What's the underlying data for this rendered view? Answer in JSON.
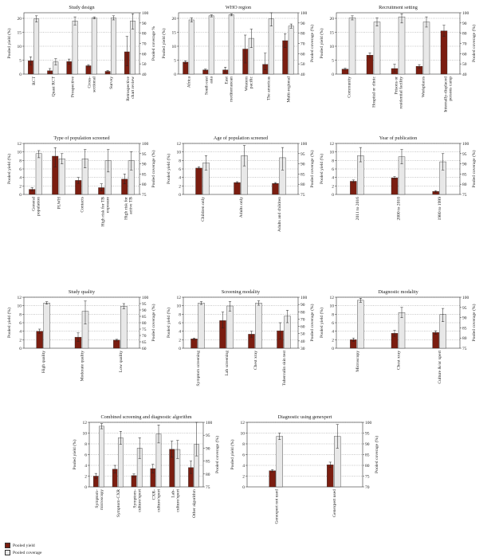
{
  "colors": {
    "yield": "#7b1d10",
    "coverage": "#e8e8e8",
    "edge": "#333333"
  },
  "legend": {
    "yield_label": "Pooled yield",
    "coverage_label": "Pooled coverage"
  },
  "chart_data": [
    {
      "type": "bar",
      "title": "Study design",
      "ylabel": "Pooled yield (%)",
      "y2label": "Pooled coverage %",
      "ylim": [
        0,
        22
      ],
      "yticks": [
        0,
        5,
        10,
        15,
        20
      ],
      "y2lim": [
        40,
        100
      ],
      "y2ticks": [
        40,
        50,
        60,
        70,
        80,
        90,
        100
      ],
      "categories": [
        "RCT",
        "Quasi RCT",
        "Prospective",
        "Cross-\nsectional",
        "Survey",
        "Retrospective\nchart review"
      ],
      "series": [
        {
          "name": "Pooled yield",
          "axis": "left",
          "values": [
            4.8,
            1.2,
            4.5,
            3.0,
            1.0,
            8.0
          ],
          "err": [
            [
              3.3,
              6.2
            ],
            [
              0.5,
              2.0
            ],
            [
              3.6,
              5.4
            ],
            [
              2.6,
              3.4
            ],
            [
              0.8,
              1.3
            ],
            [
              3.0,
              13.5
            ]
          ]
        },
        {
          "name": "Pooled coverage",
          "axis": "right",
          "values": [
            94,
            52,
            92,
            95,
            95,
            92
          ],
          "err": [
            [
              91,
              97
            ],
            [
              49,
              55
            ],
            [
              88,
              96
            ],
            [
              94,
              96
            ],
            [
              93,
              97
            ],
            [
              84,
              99
            ]
          ]
        }
      ]
    },
    {
      "type": "bar",
      "title": "WHO region",
      "ylabel": "Pooled yield (%)",
      "y2label": "Pooled coverage (%)",
      "ylim": [
        0,
        22
      ],
      "yticks": [
        0,
        5,
        10,
        15,
        20
      ],
      "y2lim": [
        40,
        100
      ],
      "y2ticks": [
        40,
        50,
        60,
        70,
        80,
        90,
        100
      ],
      "categories": [
        "Africa",
        "South east\nasia",
        "East\nmediterranean",
        "Western\npacific",
        "The americas",
        "Multi-regional"
      ],
      "series": [
        {
          "name": "Pooled yield",
          "axis": "left",
          "values": [
            4.3,
            1.5,
            1.5,
            9.0,
            3.5,
            12.0
          ],
          "err": [
            [
              3.8,
              4.8
            ],
            [
              1.2,
              1.8
            ],
            [
              0.8,
              2.5
            ],
            [
              4.0,
              14.0
            ],
            [
              1.5,
              7.5
            ],
            [
              9.5,
              14.5
            ]
          ]
        },
        {
          "name": "Pooled coverage",
          "axis": "right",
          "values": [
            93,
            97,
            98,
            75,
            94,
            87
          ],
          "err": [
            [
              91,
              95
            ],
            [
              96,
              98
            ],
            [
              97,
              99
            ],
            [
              66,
              84
            ],
            [
              87,
              100
            ],
            [
              85,
              89
            ]
          ]
        }
      ]
    },
    {
      "type": "bar",
      "title": "Recruitment setting",
      "ylabel": "Pooled yield (%)",
      "y2label": "Pooled coverage (%)",
      "ylim": [
        0,
        22
      ],
      "yticks": [
        0,
        5,
        10,
        15,
        20
      ],
      "y2lim": [
        40,
        100
      ],
      "y2ticks": [
        40,
        50,
        60,
        70,
        80,
        90,
        100
      ],
      "categories": [
        "Community",
        "Hospital or clinic",
        "Prisons or\nresidential facility",
        "Workplaces",
        "Internally-displaced\npersons camp"
      ],
      "series": [
        {
          "name": "Pooled yield",
          "axis": "left",
          "values": [
            1.8,
            6.8,
            2.0,
            2.8,
            15.5
          ],
          "err": [
            [
              1.5,
              2.1
            ],
            [
              6.0,
              7.6
            ],
            [
              0.8,
              3.5
            ],
            [
              2.2,
              3.4
            ],
            [
              13.5,
              17.5
            ]
          ]
        },
        {
          "name": "Pooled coverage",
          "axis": "right",
          "values": [
            95,
            91,
            96,
            91,
            null
          ],
          "err": [
            [
              93,
              97
            ],
            [
              87,
              95
            ],
            [
              90,
              99
            ],
            [
              86,
              96
            ],
            null
          ]
        }
      ]
    },
    {
      "type": "bar",
      "title": "Type of population screened",
      "ylabel": "Pooled yield (%)",
      "y2label": "Pooled coverage (%)",
      "ylim": [
        0,
        12
      ],
      "yticks": [
        0,
        2,
        4,
        6,
        8,
        10,
        12
      ],
      "y2lim": [
        75,
        100
      ],
      "y2ticks": [
        75,
        80,
        85,
        90,
        95,
        100
      ],
      "categories": [
        "General\npopulation",
        "PLWH",
        "Contacts",
        "High risk for TB\nexposure",
        "High risk for\nactive TB"
      ],
      "series": [
        {
          "name": "Pooled yield",
          "axis": "left",
          "values": [
            1.2,
            9.0,
            3.3,
            1.6,
            3.6
          ],
          "err": [
            [
              0.8,
              1.6
            ],
            [
              6.5,
              11.0
            ],
            [
              2.6,
              4.0
            ],
            [
              0.8,
              2.5
            ],
            [
              2.5,
              4.8
            ]
          ]
        },
        {
          "name": "Pooled coverage",
          "axis": "right",
          "values": [
            95,
            92.5,
            92.5,
            91.5,
            91.5
          ],
          "err": [
            [
              93,
              96.5
            ],
            [
              90,
              95
            ],
            [
              88,
              97
            ],
            [
              86,
              97
            ],
            [
              87,
              96
            ]
          ]
        }
      ]
    },
    {
      "type": "bar",
      "title": "Age of population screened",
      "ylabel": "Pooled yield (%)",
      "y2label": "Pooled coverage (%)",
      "ylim": [
        0,
        12
      ],
      "yticks": [
        0,
        2,
        4,
        6,
        8,
        10,
        12
      ],
      "y2lim": [
        75,
        100
      ],
      "y2ticks": [
        75,
        80,
        85,
        90,
        95,
        100
      ],
      "categories": [
        "Children only",
        "Adults only",
        "Adults and children"
      ],
      "series": [
        {
          "name": "Pooled yield",
          "axis": "left",
          "values": [
            6.2,
            2.8,
            2.6
          ],
          "err": [
            [
              6.0,
              6.5
            ],
            [
              2.6,
              3.0
            ],
            [
              2.5,
              2.8
            ]
          ]
        },
        {
          "name": "Pooled coverage",
          "axis": "right",
          "values": [
            90.5,
            94,
            93
          ],
          "err": [
            [
              87,
              94
            ],
            [
              89,
              99
            ],
            [
              87,
              98
            ]
          ]
        }
      ]
    },
    {
      "type": "bar",
      "title": "Year of publication",
      "ylabel": "Pooled yield (%)",
      "y2label": "Pooled coverage (%)",
      "ylim": [
        0,
        12
      ],
      "yticks": [
        0,
        2,
        4,
        6,
        8,
        10,
        12
      ],
      "y2lim": [
        75,
        100
      ],
      "y2ticks": [
        75,
        80,
        85,
        90,
        95,
        100
      ],
      "categories": [
        "2011 to 2016",
        "2000 to 2010",
        "1980 to 1999"
      ],
      "series": [
        {
          "name": "Pooled yield",
          "axis": "left",
          "values": [
            3.1,
            3.9,
            0.7
          ],
          "err": [
            [
              2.8,
              3.4
            ],
            [
              3.6,
              4.2
            ],
            [
              0.5,
              0.9
            ]
          ]
        },
        {
          "name": "Pooled coverage",
          "axis": "right",
          "values": [
            94,
            93.5,
            91
          ],
          "err": [
            [
              91,
              98
            ],
            [
              90,
              97
            ],
            [
              87,
              95
            ]
          ]
        }
      ]
    },
    {
      "type": "bar",
      "title": "Study quality",
      "ylabel": "Pooled yield (%)",
      "y2label": "Pooled coverage (%)",
      "ylim": [
        0,
        12
      ],
      "yticks": [
        0,
        2,
        4,
        6,
        8,
        10,
        12
      ],
      "y2lim": [
        60,
        100
      ],
      "y2ticks": [
        60,
        65,
        70,
        75,
        80,
        85,
        90,
        95,
        100
      ],
      "categories": [
        "High quality",
        "Moderate quality",
        "Low quality"
      ],
      "series": [
        {
          "name": "Pooled yield",
          "axis": "left",
          "values": [
            4.0,
            2.6,
            1.9
          ],
          "err": [
            [
              3.5,
              4.5
            ],
            [
              1.6,
              3.6
            ],
            [
              1.7,
              2.1
            ]
          ]
        },
        {
          "name": "Pooled coverage",
          "axis": "right",
          "values": [
            95.5,
            89,
            93
          ],
          "err": [
            [
              94.5,
              96.5
            ],
            [
              79,
              97
            ],
            [
              91,
              95
            ]
          ]
        }
      ]
    },
    {
      "type": "bar",
      "title": "Screening modality",
      "ylabel": "Pooled yield (%)",
      "y2label": "Pooled coverage (%)",
      "ylim": [
        0,
        12
      ],
      "yticks": [
        0,
        2,
        4,
        6,
        8,
        10,
        12
      ],
      "y2lim": [
        30,
        100
      ],
      "y2ticks": [
        30,
        40,
        50,
        60,
        70,
        80,
        90,
        100
      ],
      "categories": [
        "Symptom screening",
        "Lab screening",
        "Chest xray",
        "Tuberculin skin test"
      ],
      "series": [
        {
          "name": "Pooled yield",
          "axis": "left",
          "values": [
            2.2,
            6.5,
            3.3,
            4.1
          ],
          "err": [
            [
              2.0,
              2.4
            ],
            [
              4.8,
              8.5
            ],
            [
              2.6,
              4.0
            ],
            [
              2.2,
              6.0
            ]
          ]
        },
        {
          "name": "Pooled coverage",
          "axis": "right",
          "values": [
            92,
            88,
            92,
            74
          ],
          "err": [
            [
              90,
              94
            ],
            [
              81,
              94
            ],
            [
              89,
              95
            ],
            [
              65,
              82
            ]
          ]
        }
      ]
    },
    {
      "type": "bar",
      "title": "Diagnostic modality",
      "ylabel": "Pooled yield (%)",
      "y2label": "Pooled coverage (%)",
      "ylim": [
        0,
        12
      ],
      "yticks": [
        0,
        2,
        4,
        6,
        8,
        10,
        12
      ],
      "y2lim": [
        75,
        100
      ],
      "y2ticks": [
        75,
        80,
        85,
        90,
        95,
        100
      ],
      "categories": [
        "Microscopy",
        "Chest xray",
        "Culture &/or xpert"
      ],
      "series": [
        {
          "name": "Pooled yield",
          "axis": "left",
          "values": [
            2.0,
            3.5,
            3.7
          ],
          "err": [
            [
              1.6,
              2.4
            ],
            [
              2.8,
              4.2
            ],
            [
              3.3,
              4.1
            ]
          ]
        },
        {
          "name": "Pooled coverage",
          "axis": "right",
          "values": [
            98.5,
            92.5,
            91.5
          ],
          "err": [
            [
              97.5,
              99.5
            ],
            [
              90,
              95
            ],
            [
              88,
              94.5
            ]
          ]
        }
      ]
    },
    {
      "type": "bar",
      "title": "Combined screening and diagnostic algorithm",
      "ylabel": "Pooled yield (%)",
      "y2label": "Pooled coverage (%)",
      "ylim": [
        0,
        12
      ],
      "yticks": [
        0,
        2,
        4,
        6,
        8,
        10,
        12
      ],
      "y2lim": [
        75,
        100
      ],
      "y2ticks": [
        75,
        80,
        85,
        90,
        95,
        100
      ],
      "categories": [
        "Symptom-\nmicroscopy",
        "Symptom-CXR",
        "Symptom-\nculture/xpert",
        "CXR-\nculture/xpert",
        "Lab-\nculture/xpert",
        "Other algorithm"
      ],
      "series": [
        {
          "name": "Pooled yield",
          "axis": "left",
          "values": [
            2.0,
            3.3,
            2.1,
            3.4,
            7.0,
            3.6
          ],
          "err": [
            [
              1.5,
              2.5
            ],
            [
              2.6,
              4.0
            ],
            [
              1.8,
              2.4
            ],
            [
              2.6,
              4.2
            ],
            [
              5.5,
              8.5
            ],
            [
              2.5,
              4.8
            ]
          ]
        },
        {
          "name": "Pooled coverage",
          "axis": "right",
          "values": [
            98.5,
            94,
            90,
            95.5,
            89.5,
            91.5
          ],
          "err": [
            [
              97.5,
              99.5
            ],
            [
              91.5,
              96.5
            ],
            [
              86,
              94
            ],
            [
              92,
              99
            ],
            [
              86,
              93
            ],
            [
              87,
              100
            ]
          ]
        }
      ]
    },
    {
      "type": "bar",
      "title": "Diagnostic using genexpert",
      "ylabel": "Pooled yield (%)",
      "y2label": "Pooled coverage (%)",
      "ylim": [
        0,
        12
      ],
      "yticks": [
        0,
        2,
        4,
        6,
        8,
        10,
        12
      ],
      "y2lim": [
        70,
        100
      ],
      "y2ticks": [
        70,
        75,
        80,
        85,
        90,
        95,
        100
      ],
      "categories": [
        "Genexpert not used",
        "Genexpert used"
      ],
      "series": [
        {
          "name": "Pooled yield",
          "axis": "left",
          "values": [
            3.0,
            4.1
          ],
          "err": [
            [
              2.8,
              3.2
            ],
            [
              3.6,
              4.6
            ]
          ]
        },
        {
          "name": "Pooled coverage",
          "axis": "right",
          "values": [
            93.5,
            93.5
          ],
          "err": [
            [
              92,
              95
            ],
            [
              88,
              99
            ]
          ]
        }
      ]
    }
  ]
}
